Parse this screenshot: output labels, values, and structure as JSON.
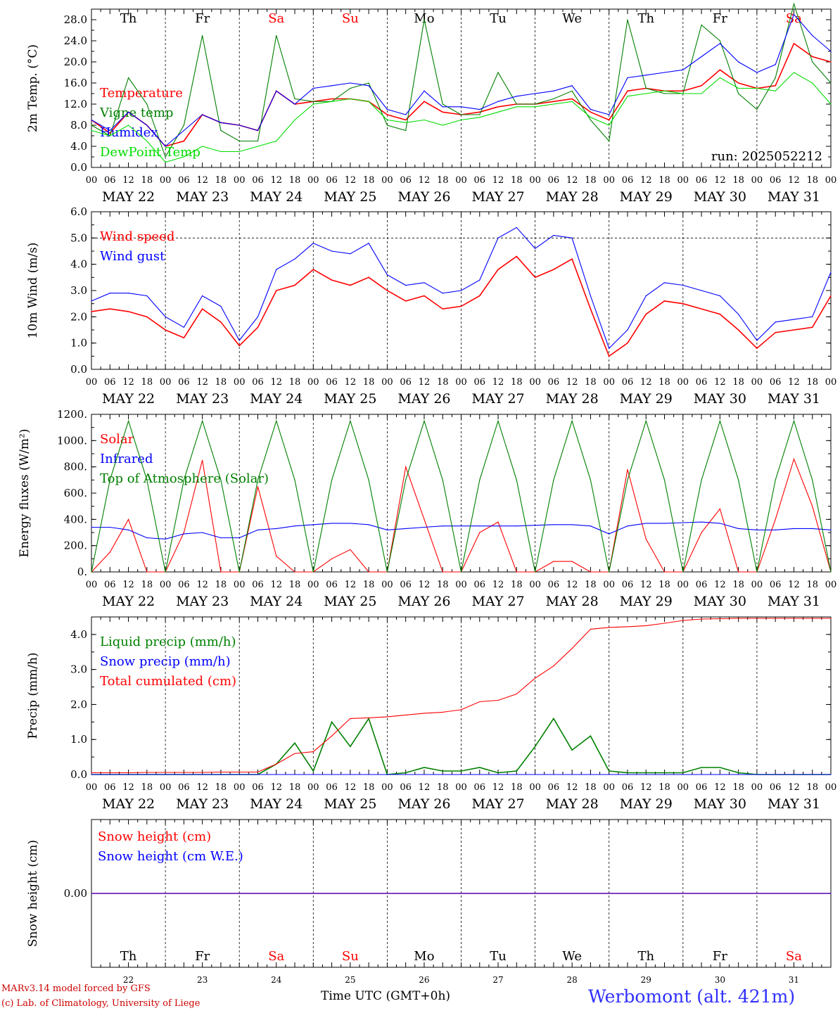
{
  "run_label": "run: 2025052212",
  "colors": {
    "red": "#ff0000",
    "darkgreen": "#008000",
    "blue": "#0000ff",
    "lightgreen": "#00dd00",
    "grid": "#000000"
  },
  "days": {
    "weekdays": [
      "Th",
      "Fr",
      "Sa",
      "Su",
      "Mo",
      "Tu",
      "We",
      "Th",
      "Fr",
      "Sa"
    ],
    "weekday_colors": [
      "#000000",
      "#000000",
      "#ff0000",
      "#ff0000",
      "#000000",
      "#000000",
      "#000000",
      "#000000",
      "#000000",
      "#ff0000"
    ],
    "dates": [
      "MAY 22",
      "MAY 23",
      "MAY 24",
      "MAY 25",
      "MAY 26",
      "MAY 27",
      "MAY 28",
      "MAY 29",
      "MAY 30",
      "MAY 31"
    ],
    "day_numbers": [
      "22",
      "23",
      "24",
      "25",
      "26",
      "27",
      "28",
      "29",
      "30",
      "31"
    ],
    "hour_ticks": [
      "00",
      "06",
      "12",
      "18"
    ],
    "final_tick": "00"
  },
  "footer": {
    "model_line1": "MARv3.14 model forced by GFS",
    "model_line2": "(c) Lab. of Climatology, University of Liege",
    "xlabel": "Time UTC (GMT+0h)",
    "station": "Werbomont (alt. 421m)"
  },
  "chart_data": [
    {
      "type": "line",
      "ylabel": "2m Temp. (°C)",
      "ylim": [
        0,
        30
      ],
      "yticks": [
        "0.0",
        "4.0",
        "8.0",
        "12.0",
        "16.0",
        "20.0",
        "24.0",
        "28.0"
      ],
      "x_hours": [
        0,
        6,
        12,
        18,
        24,
        30,
        36,
        42,
        48,
        54,
        60,
        66,
        72,
        78,
        84,
        90,
        96,
        102,
        108,
        114,
        120,
        126,
        132,
        138,
        144,
        150,
        156,
        162,
        168,
        174,
        180,
        186,
        192,
        198,
        204,
        210,
        216,
        222,
        228,
        234,
        240
      ],
      "series": [
        {
          "name": "Temperature",
          "color": "#ff0000",
          "values": [
            9,
            6.5,
            10.5,
            8,
            4,
            5,
            10,
            8.5,
            8,
            7,
            14.5,
            12,
            12.5,
            13,
            13,
            12.5,
            10,
            9,
            12.5,
            10.5,
            10,
            10.5,
            11.5,
            12,
            12,
            12.5,
            13,
            10.5,
            9,
            14.5,
            15,
            14.5,
            14.5,
            15.5,
            18.5,
            16,
            15,
            15.5,
            23.5,
            21,
            20
          ]
        },
        {
          "name": "Vigne temp",
          "color": "#008000",
          "values": [
            8,
            6,
            17,
            12,
            2,
            8,
            25,
            7,
            5,
            5,
            25,
            13,
            12.5,
            12.5,
            15,
            16,
            8,
            7,
            28,
            12,
            10,
            10,
            18,
            12,
            12,
            13,
            14.5,
            9,
            5,
            28,
            15,
            14,
            14,
            27,
            24,
            14,
            11,
            17,
            31,
            20,
            16
          ]
        },
        {
          "name": "Humidex",
          "color": "#0000ff",
          "values": [
            9,
            7,
            10.5,
            8,
            4,
            7,
            10,
            8.5,
            8,
            7,
            14.5,
            12,
            15,
            15.5,
            16,
            15.5,
            11,
            10,
            14.5,
            11.5,
            11.5,
            11,
            12.5,
            13.5,
            14,
            14.5,
            15.5,
            11,
            10,
            17,
            17.5,
            18,
            18.5,
            21,
            23.5,
            20,
            18,
            19.5,
            29,
            25,
            22
          ]
        },
        {
          "name": "DewPoint Temp",
          "color": "#00dd00",
          "values": [
            7,
            6,
            8,
            5,
            1,
            2,
            4,
            3,
            3,
            4,
            5,
            9,
            12,
            12.5,
            13,
            12.5,
            9,
            8.5,
            9,
            8,
            9,
            9.5,
            10.5,
            11.5,
            11.5,
            12,
            12.5,
            9.5,
            8,
            13.5,
            14,
            14.5,
            14,
            14,
            17,
            15,
            15,
            14.5,
            18,
            16,
            12
          ]
        }
      ]
    },
    {
      "type": "line",
      "ylabel": "10m Wind (m/s)",
      "ylim": [
        0,
        6
      ],
      "yticks": [
        "0.0",
        "1.0",
        "2.0",
        "3.0",
        "4.0",
        "5.0",
        "6.0"
      ],
      "x_hours": [
        0,
        6,
        12,
        18,
        24,
        30,
        36,
        42,
        48,
        54,
        60,
        66,
        72,
        78,
        84,
        90,
        96,
        102,
        108,
        114,
        120,
        126,
        132,
        138,
        144,
        150,
        156,
        162,
        168,
        174,
        180,
        186,
        192,
        198,
        204,
        210,
        216,
        222,
        228,
        234,
        240
      ],
      "series": [
        {
          "name": "Wind speed",
          "color": "#ff0000",
          "values": [
            2.2,
            2.3,
            2.2,
            2,
            1.5,
            1.2,
            2.3,
            1.8,
            0.9,
            1.6,
            3,
            3.2,
            3.8,
            3.4,
            3.2,
            3.5,
            3,
            2.6,
            2.8,
            2.3,
            2.4,
            2.8,
            3.8,
            4.3,
            3.5,
            3.8,
            4.2,
            2.3,
            0.5,
            1,
            2.1,
            2.6,
            2.5,
            2.3,
            2.1,
            1.5,
            0.8,
            1.4,
            1.5,
            1.6,
            2.8
          ]
        },
        {
          "name": "Wind gust",
          "color": "#0000ff",
          "values": [
            2.6,
            2.9,
            2.9,
            2.8,
            2,
            1.6,
            2.8,
            2.4,
            1.1,
            2,
            3.8,
            4.2,
            4.8,
            4.5,
            4.4,
            4.8,
            3.6,
            3.2,
            3.3,
            2.9,
            3,
            3.4,
            5,
            5.4,
            4.6,
            5.1,
            5,
            2.8,
            0.8,
            1.5,
            2.8,
            3.3,
            3.2,
            3,
            2.8,
            2.1,
            1.1,
            1.8,
            1.9,
            2,
            3.7
          ]
        }
      ]
    },
    {
      "type": "line",
      "ylabel": "Energy fluxes (W/m²)",
      "ylim": [
        0,
        1200
      ],
      "yticks": [
        "0.",
        "200.",
        "400.",
        "600.",
        "800.",
        "1000.",
        "1200."
      ],
      "x_hours": [
        0,
        6,
        12,
        18,
        24,
        30,
        36,
        42,
        48,
        54,
        60,
        66,
        72,
        78,
        84,
        90,
        96,
        102,
        108,
        114,
        120,
        126,
        132,
        138,
        144,
        150,
        156,
        162,
        168,
        174,
        180,
        186,
        192,
        198,
        204,
        210,
        216,
        222,
        228,
        234,
        240
      ],
      "series": [
        {
          "name": "Solar",
          "color": "#ff0000",
          "values": [
            0,
            150,
            400,
            0,
            0,
            300,
            850,
            0,
            0,
            650,
            120,
            0,
            0,
            100,
            170,
            0,
            0,
            800,
            400,
            0,
            0,
            300,
            380,
            0,
            0,
            80,
            80,
            0,
            0,
            780,
            250,
            0,
            0,
            300,
            480,
            0,
            0,
            400,
            860,
            500,
            0
          ]
        },
        {
          "name": "Infrared",
          "color": "#0000ff",
          "values": [
            340,
            340,
            320,
            260,
            250,
            290,
            300,
            260,
            260,
            320,
            330,
            350,
            360,
            370,
            370,
            360,
            320,
            330,
            340,
            350,
            350,
            350,
            350,
            350,
            355,
            360,
            360,
            350,
            290,
            350,
            370,
            370,
            375,
            380,
            370,
            330,
            320,
            320,
            330,
            330,
            320
          ]
        },
        {
          "name": "Top of Atmosphere (Solar)",
          "color": "#008000",
          "values": [
            0,
            700,
            1150,
            700,
            0,
            700,
            1150,
            700,
            0,
            700,
            1150,
            700,
            0,
            700,
            1150,
            700,
            0,
            700,
            1150,
            700,
            0,
            700,
            1150,
            700,
            0,
            700,
            1150,
            700,
            0,
            700,
            1150,
            700,
            0,
            700,
            1150,
            700,
            0,
            700,
            1150,
            700,
            0
          ]
        }
      ]
    },
    {
      "type": "line",
      "ylabel": "Precip (mm/h)",
      "ylim": [
        0,
        4.5
      ],
      "yticks": [
        "0.0",
        "1.0",
        "2.0",
        "3.0",
        "4.0"
      ],
      "x_hours": [
        0,
        6,
        12,
        18,
        24,
        30,
        36,
        42,
        48,
        54,
        60,
        66,
        72,
        78,
        84,
        90,
        96,
        102,
        108,
        114,
        120,
        126,
        132,
        138,
        144,
        150,
        156,
        162,
        168,
        174,
        180,
        186,
        192,
        198,
        204,
        210,
        216,
        222,
        228,
        234,
        240
      ],
      "series": [
        {
          "name": "Liquid precip (mm/h)",
          "color": "#008000",
          "values": [
            0,
            0,
            0,
            0,
            0,
            0,
            0,
            0,
            0,
            0,
            0.3,
            0.9,
            0.1,
            1.5,
            0.8,
            1.6,
            0,
            0.05,
            0.2,
            0.1,
            0.1,
            0.2,
            0.05,
            0.1,
            0.8,
            1.6,
            0.7,
            1.1,
            0.1,
            0.05,
            0.05,
            0.05,
            0.05,
            0.2,
            0.2,
            0.05,
            0,
            0,
            0,
            0,
            0
          ]
        },
        {
          "name": "Snow precip (mm/h)",
          "color": "#0000ff",
          "values": [
            0,
            0,
            0,
            0,
            0,
            0,
            0,
            0,
            0,
            0,
            0,
            0,
            0,
            0,
            0,
            0,
            0,
            0,
            0,
            0,
            0,
            0,
            0,
            0,
            0,
            0,
            0,
            0,
            0,
            0,
            0,
            0,
            0,
            0,
            0,
            0,
            0,
            0,
            0,
            0,
            0
          ]
        },
        {
          "name": "Total cumulated (cm)",
          "color": "#ff0000",
          "values": [
            0.05,
            0.05,
            0.05,
            0.06,
            0.06,
            0.06,
            0.06,
            0.07,
            0.07,
            0.07,
            0.3,
            0.6,
            0.65,
            1.1,
            1.6,
            1.62,
            1.65,
            1.7,
            1.75,
            1.78,
            1.85,
            2.08,
            2.12,
            2.3,
            2.75,
            3.1,
            3.6,
            4.15,
            4.2,
            4.22,
            4.25,
            4.32,
            4.4,
            4.44,
            4.45,
            4.46,
            4.46,
            4.46,
            4.46,
            4.46,
            4.46
          ]
        }
      ]
    },
    {
      "type": "line",
      "ylabel": "Snow height (cm)",
      "ylim": [
        -1,
        1
      ],
      "yticks": [
        "0.00"
      ],
      "x_hours": [
        0,
        240
      ],
      "series": [
        {
          "name": "Snow height (cm)",
          "color": "#ff0000",
          "values": [
            0,
            0
          ]
        },
        {
          "name": "Snow height (cm W.E.)",
          "color": "#0000ff",
          "values": [
            0,
            0
          ]
        }
      ]
    }
  ]
}
